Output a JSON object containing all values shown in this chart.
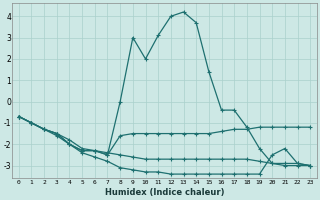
{
  "xlabel": "Humidex (Indice chaleur)",
  "bg_color": "#cde8e5",
  "grid_color": "#aad0cc",
  "line_color": "#1e7070",
  "xlim": [
    -0.5,
    23.5
  ],
  "ylim": [
    -3.6,
    4.6
  ],
  "yticks": [
    -3,
    -2,
    -1,
    0,
    1,
    2,
    3,
    4
  ],
  "xticks": [
    0,
    1,
    2,
    3,
    4,
    5,
    6,
    7,
    8,
    9,
    10,
    11,
    12,
    13,
    14,
    15,
    16,
    17,
    18,
    19,
    20,
    21,
    22,
    23
  ],
  "line1_x": [
    0,
    1,
    2,
    3,
    4,
    5,
    6,
    7,
    8,
    9,
    10,
    11,
    12,
    13,
    14,
    15,
    16,
    17,
    18,
    19,
    20,
    21,
    22,
    23
  ],
  "line1_y": [
    -0.7,
    -1.0,
    -1.3,
    -1.5,
    -1.8,
    -2.2,
    -2.3,
    -2.4,
    -2.5,
    -2.6,
    -2.7,
    -2.7,
    -2.7,
    -2.7,
    -2.7,
    -2.7,
    -2.7,
    -2.7,
    -2.7,
    -2.8,
    -2.9,
    -2.9,
    -2.9,
    -3.0
  ],
  "line2_x": [
    0,
    1,
    2,
    3,
    4,
    5,
    6,
    7,
    8,
    9,
    10,
    11,
    12,
    13,
    14,
    15,
    16,
    17,
    18,
    19,
    20,
    21,
    22,
    23
  ],
  "line2_y": [
    -0.7,
    -1.0,
    -1.3,
    -1.6,
    -2.0,
    -2.4,
    -2.6,
    -2.8,
    -3.1,
    -3.2,
    -3.3,
    -3.3,
    -3.4,
    -3.4,
    -3.4,
    -3.4,
    -3.4,
    -3.4,
    -3.4,
    -3.4,
    -2.5,
    -2.2,
    -2.9,
    -3.0
  ],
  "line3_x": [
    0,
    1,
    2,
    3,
    4,
    5,
    6,
    7,
    8,
    9,
    10,
    11,
    12,
    13,
    14,
    15,
    16,
    17,
    18,
    19,
    20,
    21,
    22,
    23
  ],
  "line3_y": [
    -0.7,
    -1.0,
    -1.3,
    -1.5,
    -2.0,
    -2.3,
    -2.3,
    -2.5,
    -1.6,
    -1.5,
    -1.5,
    -1.5,
    -1.5,
    -1.5,
    -1.5,
    -1.5,
    -1.4,
    -1.3,
    -1.3,
    -1.2,
    -1.2,
    -1.2,
    -1.2,
    -1.2
  ],
  "line4_x": [
    0,
    1,
    2,
    3,
    4,
    5,
    6,
    7,
    8,
    9,
    10,
    11,
    12,
    13,
    14,
    15,
    16,
    17,
    18,
    19,
    20,
    21,
    22,
    23
  ],
  "line4_y": [
    -0.7,
    -1.0,
    -1.3,
    -1.5,
    -2.0,
    -2.3,
    -2.3,
    -2.5,
    0.0,
    3.0,
    2.0,
    3.1,
    4.0,
    4.2,
    3.7,
    1.4,
    -0.4,
    -0.4,
    -1.2,
    -2.2,
    -2.9,
    -3.0,
    -3.0,
    -3.0
  ]
}
